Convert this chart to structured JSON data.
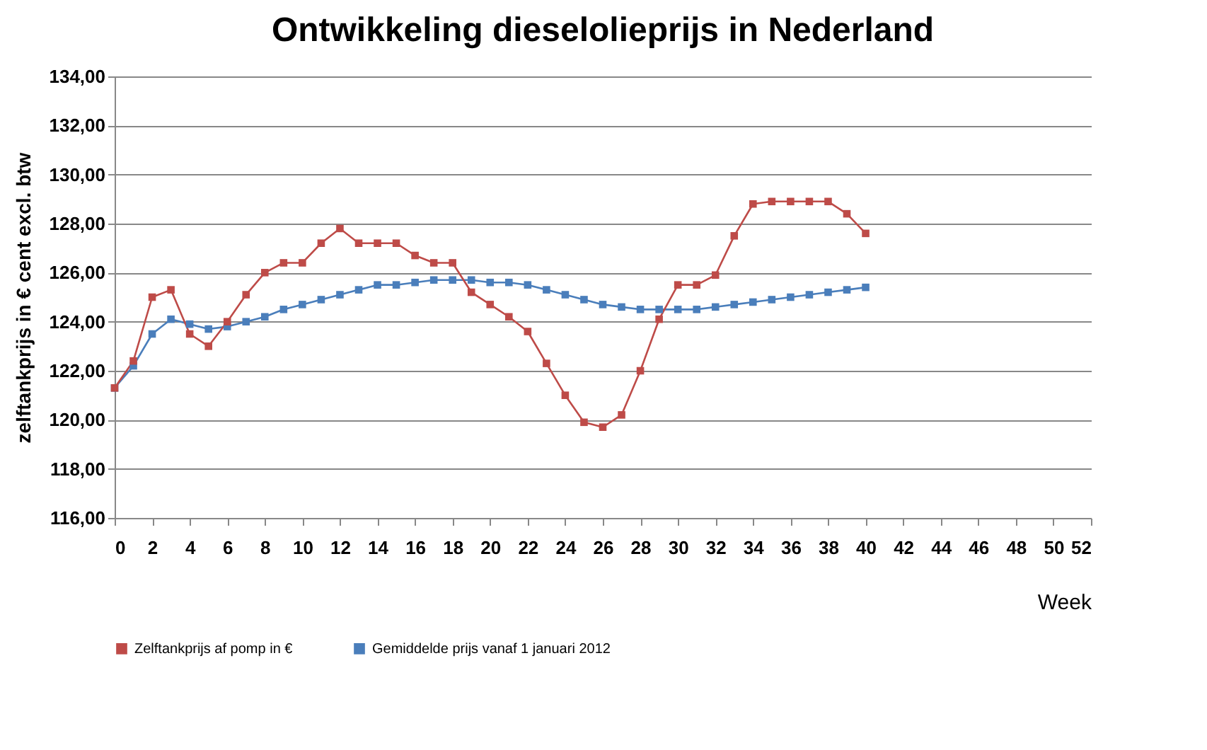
{
  "chart_data": {
    "type": "line",
    "title": "Ontwikkeling dieselolieprijs in Nederland",
    "xlabel": "Week",
    "ylabel": "zelftankprijs in € cent excl. btw",
    "x": [
      0,
      1,
      2,
      3,
      4,
      5,
      6,
      7,
      8,
      9,
      10,
      11,
      12,
      13,
      14,
      15,
      16,
      17,
      18,
      19,
      20,
      21,
      22,
      23,
      24,
      25,
      26,
      27,
      28,
      29,
      30,
      31,
      32,
      33,
      34,
      35,
      36,
      37,
      38,
      39,
      40
    ],
    "series": [
      {
        "name": "Zelftankprijs af pomp in €",
        "color": "#be4b48",
        "values": [
          121.3,
          122.4,
          125.0,
          125.3,
          123.5,
          123.0,
          124.0,
          125.1,
          126.0,
          126.4,
          126.4,
          127.2,
          127.8,
          127.2,
          127.2,
          127.2,
          126.7,
          126.4,
          126.4,
          125.2,
          124.7,
          124.2,
          123.6,
          122.3,
          121.0,
          119.9,
          119.7,
          120.2,
          122.0,
          124.1,
          125.5,
          125.5,
          125.9,
          127.5,
          128.8,
          128.9,
          128.9,
          128.9,
          128.9,
          128.4,
          127.6
        ]
      },
      {
        "name": "Gemiddelde prijs vanaf 1 januari 2012",
        "color": "#4a7ebb",
        "values": [
          121.3,
          122.2,
          123.5,
          124.1,
          123.9,
          123.7,
          123.8,
          124.0,
          124.2,
          124.5,
          124.7,
          124.9,
          125.1,
          125.3,
          125.5,
          125.5,
          125.6,
          125.7,
          125.7,
          125.7,
          125.6,
          125.6,
          125.5,
          125.3,
          125.1,
          124.9,
          124.7,
          124.6,
          124.5,
          124.5,
          124.5,
          124.5,
          124.6,
          124.7,
          124.8,
          124.9,
          125.0,
          125.1,
          125.2,
          125.3,
          125.4
        ]
      }
    ],
    "xlim": [
      0,
      52
    ],
    "xticks": [
      0,
      2,
      4,
      6,
      8,
      10,
      12,
      14,
      16,
      18,
      20,
      22,
      24,
      26,
      28,
      30,
      32,
      34,
      36,
      38,
      40,
      42,
      44,
      46,
      48,
      50,
      52
    ],
    "ylim": [
      116,
      134
    ],
    "yticks": [
      {
        "value": 116,
        "label": "116,00"
      },
      {
        "value": 118,
        "label": "118,00"
      },
      {
        "value": 120,
        "label": "120,00"
      },
      {
        "value": 122,
        "label": "122,00"
      },
      {
        "value": 124,
        "label": "124,00"
      },
      {
        "value": 126,
        "label": "126,00"
      },
      {
        "value": 128,
        "label": "128,00"
      },
      {
        "value": 130,
        "label": "130,00"
      },
      {
        "value": 132,
        "label": "132,00"
      },
      {
        "value": 134,
        "label": "134,00"
      }
    ],
    "grid": "y",
    "legend": "bottom",
    "marker": "square",
    "line_style": "solid"
  }
}
